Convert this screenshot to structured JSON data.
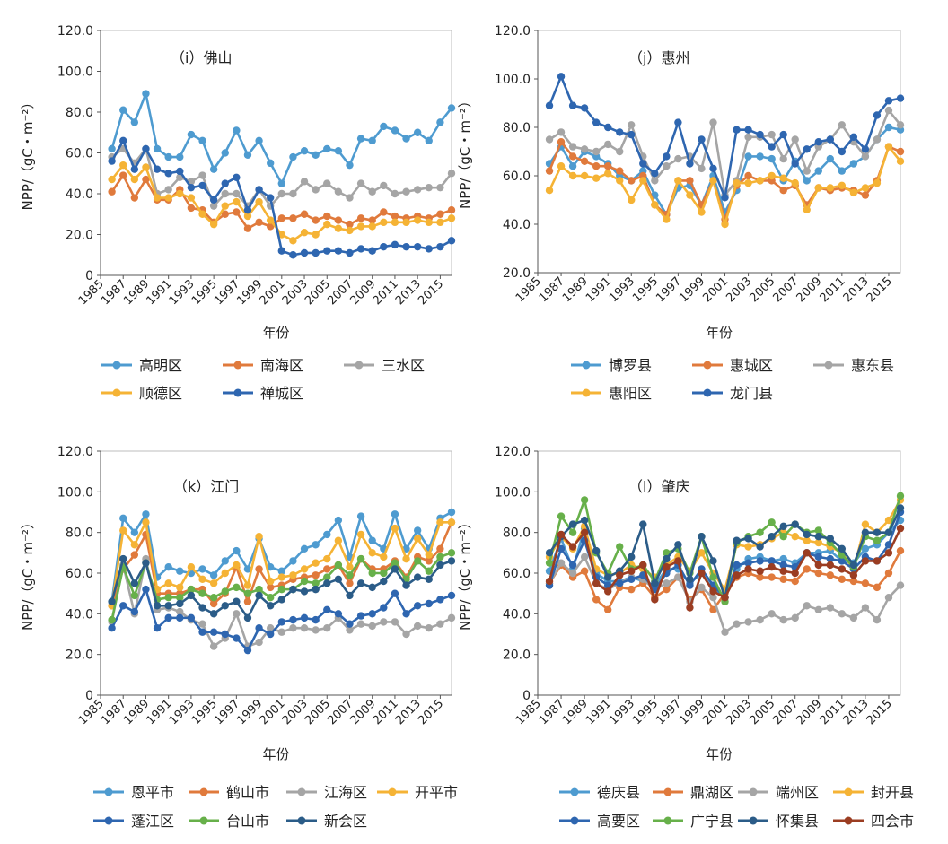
{
  "chart_data": [
    {
      "type": "line",
      "title": "（i）佛山",
      "xlabel": "年份",
      "ylabel": "NPP/（gC・m⁻²）",
      "ylim": [
        0,
        120
      ],
      "yticks": [
        "0",
        "20.0",
        "40.0",
        "60.0",
        "80.0",
        "100.0",
        "120.0"
      ],
      "xticks": [
        "1985",
        "1987",
        "1989",
        "1991",
        "1993",
        "1995",
        "1997",
        "1999",
        "2001",
        "2003",
        "2005",
        "2007",
        "2009",
        "2011",
        "2013",
        "2015"
      ],
      "x": [
        1986,
        1987,
        1988,
        1989,
        1990,
        1991,
        1992,
        1993,
        1994,
        1995,
        1996,
        1997,
        1998,
        1999,
        2000,
        2001,
        2002,
        2003,
        2004,
        2005,
        2006,
        2007,
        2008,
        2009,
        2010,
        2011,
        2012,
        2013,
        2014,
        2015,
        2016
      ],
      "legend_cols": 3,
      "series": [
        {
          "name": "高明区",
          "color": "#4e9bd0",
          "values": [
            62,
            81,
            75,
            89,
            62,
            58,
            58,
            69,
            66,
            52,
            60,
            71,
            59,
            66,
            55,
            45,
            58,
            61,
            59,
            62,
            61,
            54,
            67,
            66,
            73,
            71,
            67,
            70,
            66,
            75,
            82
          ]
        },
        {
          "name": "南海区",
          "color": "#e07a3c",
          "values": [
            41,
            49,
            38,
            47,
            37,
            37,
            42,
            33,
            32,
            26,
            30,
            31,
            23,
            26,
            24,
            28,
            28,
            30,
            27,
            29,
            27,
            25,
            28,
            27,
            31,
            29,
            28,
            29,
            28,
            30,
            32
          ]
        },
        {
          "name": "三水区",
          "color": "#a5a5a5",
          "values": [
            58,
            62,
            55,
            62,
            40,
            42,
            48,
            46,
            49,
            34,
            40,
            40,
            34,
            42,
            34,
            40,
            40,
            46,
            42,
            45,
            41,
            38,
            45,
            41,
            44,
            40,
            41,
            42,
            43,
            43,
            50
          ]
        },
        {
          "name": "顺德区",
          "color": "#f5b335",
          "values": [
            47,
            54,
            47,
            53,
            38,
            38,
            40,
            38,
            30,
            25,
            34,
            36,
            29,
            36,
            27,
            20,
            17,
            21,
            20,
            25,
            23,
            22,
            24,
            24,
            26,
            26,
            26,
            27,
            26,
            26,
            28
          ]
        },
        {
          "name": "禅城区",
          "color": "#2e66b0",
          "values": [
            56,
            66,
            52,
            62,
            52,
            50,
            51,
            43,
            44,
            37,
            45,
            48,
            32,
            42,
            38,
            12,
            10,
            11,
            11,
            12,
            12,
            11,
            13,
            12,
            14,
            15,
            14,
            14,
            13,
            14,
            17
          ]
        }
      ]
    },
    {
      "type": "line",
      "title": "（j）惠州",
      "xlabel": "年份",
      "ylabel": "NPP/（gC・m⁻²）",
      "ylim": [
        20,
        120
      ],
      "yticks": [
        "20.0",
        "40.0",
        "60.0",
        "80.0",
        "100.0",
        "120.0"
      ],
      "xticks": [
        "1985",
        "1987",
        "1989",
        "1991",
        "1993",
        "1995",
        "1997",
        "1999",
        "2001",
        "2003",
        "2005",
        "2007",
        "2009",
        "2011",
        "2013",
        "2015"
      ],
      "x": [
        1986,
        1987,
        1988,
        1989,
        1990,
        1991,
        1992,
        1993,
        1994,
        1995,
        1996,
        1997,
        1998,
        1999,
        2000,
        2001,
        2002,
        2003,
        2004,
        2005,
        2006,
        2007,
        2008,
        2009,
        2010,
        2011,
        2012,
        2013,
        2014,
        2015,
        2016
      ],
      "legend_cols": 3,
      "series": [
        {
          "name": "博罗县",
          "color": "#4e9bd0",
          "values": [
            65,
            72,
            64,
            70,
            68,
            65,
            60,
            58,
            62,
            52,
            44,
            55,
            56,
            48,
            60,
            45,
            54,
            68,
            68,
            67,
            58,
            66,
            58,
            62,
            67,
            62,
            65,
            68,
            75,
            80,
            79
          ]
        },
        {
          "name": "惠城区",
          "color": "#e07a3c",
          "values": [
            62,
            74,
            68,
            66,
            64,
            64,
            62,
            58,
            60,
            48,
            44,
            58,
            58,
            48,
            58,
            42,
            56,
            60,
            58,
            58,
            54,
            56,
            48,
            55,
            54,
            55,
            54,
            52,
            58,
            72,
            70
          ]
        },
        {
          "name": "惠东县",
          "color": "#a5a5a5",
          "values": [
            75,
            78,
            72,
            71,
            70,
            73,
            70,
            81,
            68,
            58,
            64,
            67,
            68,
            63,
            82,
            52,
            58,
            76,
            76,
            77,
            67,
            75,
            62,
            72,
            75,
            81,
            74,
            68,
            75,
            87,
            81
          ]
        },
        {
          "name": "惠阳区",
          "color": "#f5b335",
          "values": [
            54,
            64,
            60,
            60,
            59,
            61,
            58,
            50,
            58,
            48,
            42,
            58,
            52,
            45,
            58,
            40,
            57,
            57,
            58,
            60,
            59,
            57,
            46,
            55,
            55,
            56,
            53,
            55,
            57,
            72,
            66
          ]
        },
        {
          "name": "龙门县",
          "color": "#2e66b0",
          "values": [
            89,
            101,
            89,
            88,
            82,
            80,
            78,
            77,
            65,
            61,
            68,
            82,
            65,
            75,
            63,
            51,
            79,
            79,
            77,
            72,
            77,
            65,
            71,
            74,
            75,
            70,
            76,
            71,
            85,
            91,
            92
          ]
        }
      ]
    },
    {
      "type": "line",
      "title": "（k）江门",
      "xlabel": "年份",
      "ylabel": "NPP/（gC・m⁻²）",
      "ylim": [
        0,
        120
      ],
      "yticks": [
        "0",
        "20.0",
        "40.0",
        "60.0",
        "80.0",
        "100.0",
        "120.0"
      ],
      "xticks": [
        "1985",
        "1987",
        "1989",
        "1991",
        "1993",
        "1995",
        "1997",
        "1999",
        "2001",
        "2003",
        "2005",
        "2007",
        "2009",
        "2011",
        "2013",
        "2015"
      ],
      "x": [
        1986,
        1987,
        1988,
        1989,
        1990,
        1991,
        1992,
        1993,
        1994,
        1995,
        1996,
        1997,
        1998,
        1999,
        2000,
        2001,
        2002,
        2003,
        2004,
        2005,
        2006,
        2007,
        2008,
        2009,
        2010,
        2011,
        2012,
        2013,
        2014,
        2015,
        2016
      ],
      "legend_cols": 4,
      "series": [
        {
          "name": "恩平市",
          "color": "#4e9bd0",
          "values": [
            46,
            87,
            80,
            89,
            58,
            63,
            61,
            60,
            62,
            59,
            66,
            71,
            62,
            77,
            63,
            61,
            66,
            72,
            74,
            79,
            86,
            68,
            88,
            76,
            72,
            89,
            72,
            81,
            72,
            87,
            90
          ]
        },
        {
          "name": "鹤山市",
          "color": "#e07a3c",
          "values": [
            44,
            62,
            69,
            79,
            50,
            50,
            50,
            52,
            52,
            45,
            50,
            63,
            46,
            62,
            53,
            54,
            57,
            58,
            59,
            62,
            64,
            55,
            67,
            62,
            62,
            66,
            58,
            68,
            66,
            72,
            85
          ]
        },
        {
          "name": "江海区",
          "color": "#a5a5a5",
          "values": [
            36,
            64,
            40,
            67,
            42,
            43,
            41,
            37,
            35,
            24,
            28,
            40,
            24,
            26,
            33,
            31,
            33,
            33,
            32,
            33,
            38,
            32,
            35,
            34,
            36,
            36,
            30,
            34,
            33,
            35,
            38
          ]
        },
        {
          "name": "开平市",
          "color": "#f5b335",
          "values": [
            44,
            81,
            74,
            85,
            52,
            55,
            53,
            63,
            57,
            55,
            60,
            64,
            54,
            78,
            56,
            58,
            59,
            62,
            65,
            67,
            76,
            63,
            79,
            70,
            68,
            82,
            67,
            77,
            69,
            85,
            85
          ]
        },
        {
          "name": "蓬江区",
          "color": "#2e66b0",
          "values": [
            33,
            44,
            41,
            52,
            33,
            38,
            38,
            38,
            31,
            31,
            30,
            28,
            22,
            33,
            30,
            36,
            37,
            38,
            37,
            42,
            40,
            35,
            39,
            40,
            43,
            50,
            40,
            44,
            45,
            47,
            49
          ]
        },
        {
          "name": "台山市",
          "color": "#67b04a",
          "values": [
            37,
            63,
            49,
            65,
            47,
            48,
            48,
            52,
            50,
            48,
            51,
            53,
            50,
            52,
            48,
            52,
            52,
            56,
            55,
            58,
            64,
            59,
            67,
            60,
            60,
            65,
            57,
            66,
            61,
            68,
            70
          ]
        },
        {
          "name": "新会区",
          "color": "#2b5c88",
          "values": [
            46,
            67,
            55,
            65,
            44,
            44,
            45,
            49,
            43,
            40,
            44,
            46,
            38,
            49,
            44,
            47,
            52,
            51,
            52,
            55,
            57,
            49,
            55,
            53,
            56,
            62,
            54,
            58,
            57,
            64,
            66
          ]
        }
      ]
    },
    {
      "type": "line",
      "title": "（l）肇庆",
      "xlabel": "年份",
      "ylabel": "NPP/（gC・m⁻²）",
      "ylim": [
        0,
        120
      ],
      "yticks": [
        "0",
        "20.0",
        "40.0",
        "60.0",
        "80.0",
        "100.0",
        "120.0"
      ],
      "xticks": [
        "1985",
        "1987",
        "1989",
        "1991",
        "1993",
        "1995",
        "1997",
        "1999",
        "2001",
        "2003",
        "2005",
        "2007",
        "2009",
        "2011",
        "2013",
        "2015"
      ],
      "x": [
        1986,
        1987,
        1988,
        1989,
        1990,
        1991,
        1992,
        1993,
        1994,
        1995,
        1996,
        1997,
        1998,
        1999,
        2000,
        2001,
        2002,
        2003,
        2004,
        2005,
        2006,
        2007,
        2008,
        2009,
        2010,
        2011,
        2012,
        2013,
        2014,
        2015,
        2016
      ],
      "legend_cols": 4,
      "series": [
        {
          "name": "德庆县",
          "color": "#4e9bd0",
          "values": [
            61,
            77,
            62,
            82,
            60,
            56,
            56,
            58,
            56,
            54,
            62,
            62,
            55,
            60,
            52,
            48,
            62,
            67,
            68,
            66,
            67,
            65,
            70,
            70,
            71,
            66,
            65,
            72,
            74,
            80,
            86
          ]
        },
        {
          "name": "鼎湖区",
          "color": "#e07a3c",
          "values": [
            55,
            64,
            58,
            61,
            47,
            42,
            53,
            52,
            55,
            48,
            52,
            58,
            47,
            52,
            42,
            50,
            58,
            60,
            58,
            58,
            57,
            56,
            62,
            60,
            59,
            57,
            56,
            55,
            53,
            60,
            71
          ]
        },
        {
          "name": "端州区",
          "color": "#a5a5a5",
          "values": [
            55,
            65,
            60,
            68,
            55,
            52,
            55,
            58,
            57,
            52,
            55,
            58,
            46,
            53,
            48,
            31,
            35,
            36,
            37,
            40,
            37,
            38,
            44,
            42,
            43,
            40,
            38,
            43,
            37,
            48,
            54
          ]
        },
        {
          "name": "封开县",
          "color": "#f5b335",
          "values": [
            68,
            78,
            72,
            83,
            62,
            59,
            60,
            64,
            62,
            58,
            64,
            68,
            61,
            70,
            60,
            52,
            74,
            73,
            74,
            77,
            80,
            78,
            76,
            75,
            73,
            70,
            62,
            84,
            80,
            86,
            96
          ]
        },
        {
          "name": "高要区",
          "color": "#2e66b0",
          "values": [
            54,
            72,
            64,
            76,
            58,
            54,
            55,
            57,
            59,
            52,
            60,
            64,
            54,
            62,
            54,
            48,
            64,
            65,
            66,
            66,
            64,
            63,
            70,
            68,
            67,
            66,
            62,
            68,
            66,
            74,
            90
          ]
        },
        {
          "name": "广宁县",
          "color": "#67b04a",
          "values": [
            65,
            88,
            80,
            96,
            70,
            60,
            73,
            62,
            64,
            56,
            70,
            72,
            60,
            78,
            58,
            46,
            75,
            78,
            80,
            85,
            78,
            84,
            80,
            81,
            75,
            69,
            63,
            78,
            76,
            80,
            98
          ]
        },
        {
          "name": "怀集县",
          "color": "#2b5c88",
          "values": [
            70,
            78,
            84,
            86,
            71,
            58,
            61,
            68,
            84,
            55,
            67,
            74,
            57,
            78,
            66,
            48,
            76,
            77,
            73,
            78,
            83,
            84,
            79,
            78,
            77,
            72,
            64,
            80,
            80,
            80,
            92
          ]
        },
        {
          "name": "四会市",
          "color": "#9b3d22",
          "values": [
            56,
            79,
            73,
            80,
            55,
            51,
            59,
            61,
            64,
            47,
            63,
            66,
            43,
            60,
            51,
            48,
            59,
            62,
            61,
            63,
            61,
            60,
            70,
            64,
            64,
            62,
            59,
            66,
            66,
            70,
            82
          ]
        }
      ]
    }
  ]
}
